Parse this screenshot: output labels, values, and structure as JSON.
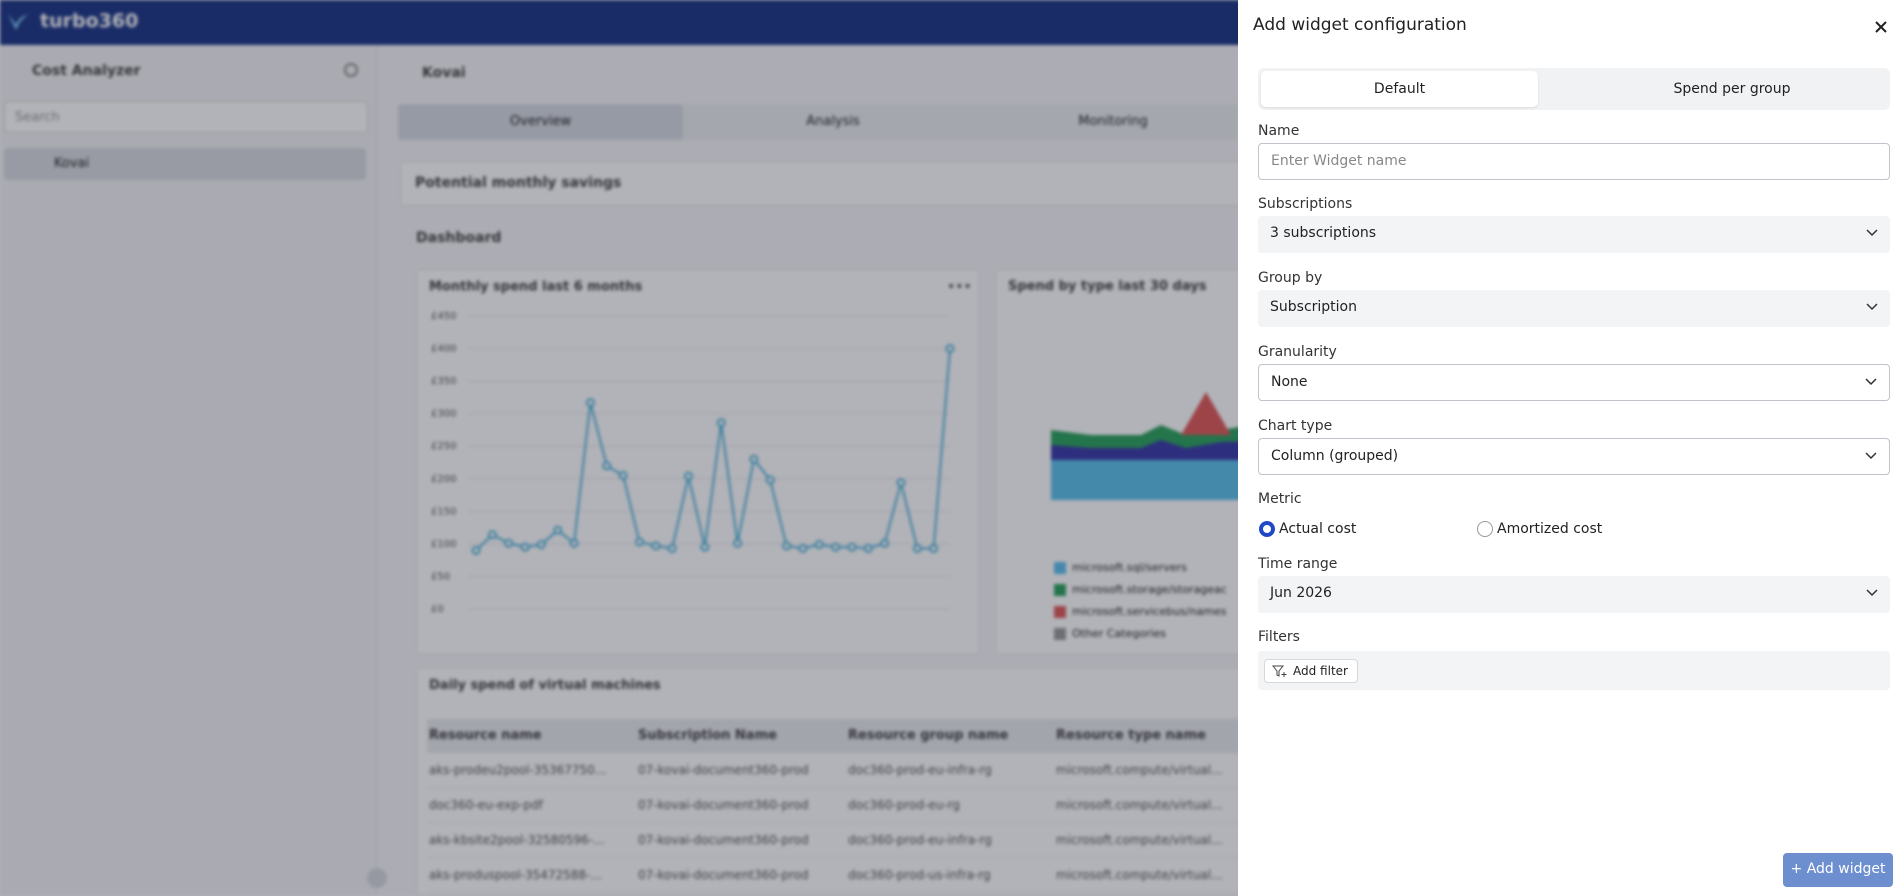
{
  "header": {
    "brand": "turbo360"
  },
  "sidebar": {
    "title": "Cost Analyzer",
    "search_placeholder": "Search",
    "tree": [
      "Kovai"
    ]
  },
  "main": {
    "breadcrumb": "Kovai",
    "tabs": [
      "Overview",
      "Analysis",
      "Monitoring"
    ],
    "savings_title": "Potential monthly savings",
    "dashboard_title": "Dashboard",
    "spend_by_type": {
      "title": "Spend by type last 30 days",
      "legend": [
        "microsoft.sql/servers",
        "microsoft.storage/storageac",
        "microsoft.servicebus/names",
        "Other Categories"
      ]
    }
  },
  "chart_data": {
    "type": "line",
    "title": "Monthly spend last 6 months",
    "color": "#4fb3dc",
    "values": [
      90,
      114,
      101,
      95,
      99,
      121,
      101,
      317,
      220,
      205,
      103,
      97,
      93,
      204,
      95,
      286,
      101,
      230,
      198,
      97,
      93,
      99,
      95,
      95,
      93,
      101,
      194,
      93,
      93,
      400
    ],
    "ylim": [
      0,
      450
    ],
    "yticks": [
      {
        "value": 0,
        "label": "£0"
      },
      {
        "value": 50,
        "label": "£50"
      },
      {
        "value": 100,
        "label": "£100"
      },
      {
        "value": 150,
        "label": "£150"
      },
      {
        "value": 200,
        "label": "£200"
      },
      {
        "value": 250,
        "label": "£250"
      },
      {
        "value": 300,
        "label": "£300"
      },
      {
        "value": 350,
        "label": "£350"
      },
      {
        "value": 400,
        "label": "£400"
      },
      {
        "value": 450,
        "label": "£450"
      }
    ],
    "grid": true
  },
  "table": {
    "title": "Daily spend of virtual machines",
    "columns": [
      "Resource name",
      "Subscription Name",
      "Resource group name",
      "Resource type name"
    ],
    "rows": [
      [
        "aks-prodeu2pool-35367750...",
        "07-kovai-document360-prod",
        "doc360-prod-eu-infra-rg",
        "microsoft.compute/virtual..."
      ],
      [
        "doc360-eu-exp-pdf",
        "07-kovai-document360-prod",
        "doc360-prod-eu-rg",
        "microsoft.compute/virtual..."
      ],
      [
        "aks-kbsite2pool-32580596-...",
        "07-kovai-document360-prod",
        "doc360-prod-eu-infra-rg",
        "microsoft.compute/virtual..."
      ],
      [
        "aks-produspool-35472588-...",
        "07-kovai-document360-prod",
        "doc360-prod-us-infra-rg",
        "microsoft.compute/virtual..."
      ]
    ]
  },
  "drawer": {
    "title": "Add widget configuration",
    "tabs": [
      "Default",
      "Spend per group"
    ],
    "name": {
      "label": "Name",
      "placeholder": "Enter Widget name"
    },
    "subscriptions": {
      "label": "Subscriptions",
      "value": "3 subscriptions"
    },
    "group_by": {
      "label": "Group by",
      "value": "Subscription"
    },
    "granularity": {
      "label": "Granularity",
      "value": "None"
    },
    "chart_type": {
      "label": "Chart type",
      "value": "Column (grouped)"
    },
    "metric": {
      "label": "Metric",
      "options": [
        "Actual cost",
        "Amortized cost"
      ]
    },
    "time_range": {
      "label": "Time range",
      "value": "Jun 2026"
    },
    "filters": {
      "label": "Filters",
      "button": "Add filter"
    },
    "submit": "+ Add widget"
  }
}
